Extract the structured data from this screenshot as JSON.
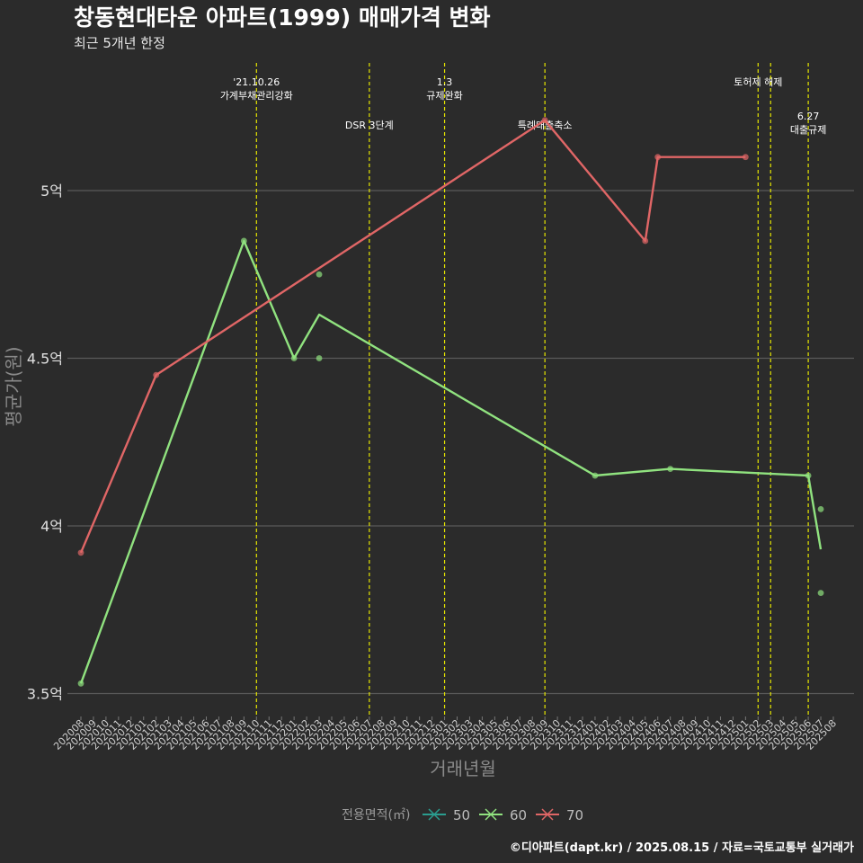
{
  "chart_data": {
    "type": "line",
    "title": "창동현대타운 아파트(1999) 매매가격 변화",
    "subtitle": "최근 5개년 한정",
    "xlabel": "거래년월",
    "ylabel": "평균가(원)",
    "caption": "©디아파트(dapt.kr) / 2025.08.15 / 자료=국토교통부 실거래가",
    "legend_title": "전용면적(㎡)",
    "legend_position": "bottom",
    "grid": true,
    "colors": {
      "50": "#2a9d8f",
      "60": "#90e27f",
      "70": "#e06666",
      "event_line": "#e6e600",
      "grid": "#5a5a5a",
      "background": "#2b2b2b"
    },
    "ylim": [
      3.46,
      5.46
    ],
    "y_ticks": [
      {
        "value": 3.5,
        "label": "3.5억"
      },
      {
        "value": 4.0,
        "label": "4억"
      },
      {
        "value": 4.5,
        "label": "4.5억"
      },
      {
        "value": 5.0,
        "label": "5억"
      }
    ],
    "categories": [
      "202008",
      "202009",
      "202010",
      "202011",
      "202012",
      "202101",
      "202102",
      "202103",
      "202104",
      "202105",
      "202106",
      "202107",
      "202108",
      "202109",
      "202110",
      "202111",
      "202112",
      "202201",
      "202202",
      "202203",
      "202204",
      "202205",
      "202206",
      "202207",
      "202208",
      "202209",
      "202210",
      "202211",
      "202212",
      "202301",
      "202302",
      "202303",
      "202304",
      "202305",
      "202306",
      "202307",
      "202308",
      "202309",
      "202310",
      "202311",
      "202312",
      "202401",
      "202402",
      "202403",
      "202404",
      "202405",
      "202406",
      "202407",
      "202408",
      "202409",
      "202410",
      "202411",
      "202412",
      "202501",
      "202502",
      "202503",
      "202504",
      "202505",
      "202506",
      "202507",
      "202508"
    ],
    "series": [
      {
        "name": "50",
        "line": [],
        "points": []
      },
      {
        "name": "60",
        "line": [
          {
            "x": "202008",
            "y": 3.53
          },
          {
            "x": "202109",
            "y": 4.85
          },
          {
            "x": "202201",
            "y": 4.5
          },
          {
            "x": "202203",
            "y": 4.63
          },
          {
            "x": "202401",
            "y": 4.15
          },
          {
            "x": "202407",
            "y": 4.17
          },
          {
            "x": "202506",
            "y": 4.15
          },
          {
            "x": "202507",
            "y": 3.93
          }
        ],
        "points": [
          {
            "x": "202008",
            "y": 3.53
          },
          {
            "x": "202109",
            "y": 4.85
          },
          {
            "x": "202201",
            "y": 4.5
          },
          {
            "x": "202203",
            "y": 4.75
          },
          {
            "x": "202203",
            "y": 4.5
          },
          {
            "x": "202401",
            "y": 4.15
          },
          {
            "x": "202407",
            "y": 4.17
          },
          {
            "x": "202506",
            "y": 4.15
          },
          {
            "x": "202507",
            "y": 4.05
          },
          {
            "x": "202507",
            "y": 3.8
          }
        ]
      },
      {
        "name": "70",
        "line": [
          {
            "x": "202008",
            "y": 3.92
          },
          {
            "x": "202102",
            "y": 4.45
          },
          {
            "x": "202309",
            "y": 5.21
          },
          {
            "x": "202405",
            "y": 4.85
          },
          {
            "x": "202406",
            "y": 5.1
          },
          {
            "x": "202501",
            "y": 5.1
          }
        ],
        "points": [
          {
            "x": "202008",
            "y": 3.92
          },
          {
            "x": "202102",
            "y": 4.45
          },
          {
            "x": "202309",
            "y": 5.21
          },
          {
            "x": "202405",
            "y": 4.85
          },
          {
            "x": "202406",
            "y": 5.1
          },
          {
            "x": "202501",
            "y": 5.1
          }
        ]
      }
    ],
    "events": [
      {
        "x": "202110",
        "lines": [
          "'21.10.26",
          "가계부채관리강화"
        ],
        "level": 1
      },
      {
        "x": "202207",
        "lines": [
          "DSR 3단계"
        ],
        "level": 2
      },
      {
        "x": "202301",
        "lines": [
          "1.3",
          "규제완화"
        ],
        "level": 1
      },
      {
        "x": "202309",
        "lines": [
          "특례대출축소"
        ],
        "level": 2
      },
      {
        "x": "202502",
        "lines": [
          "토허제 해제"
        ],
        "level": 1
      },
      {
        "x": "202503",
        "lines": [],
        "level": 1
      },
      {
        "x": "202506",
        "lines": [
          "6.27",
          "대출규제"
        ],
        "level": 3
      }
    ]
  }
}
